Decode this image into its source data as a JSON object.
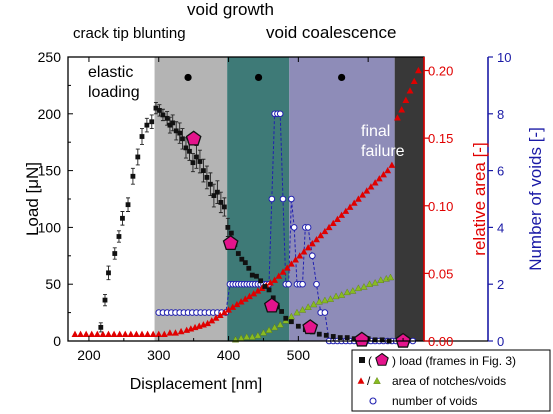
{
  "chart_data": {
    "type": "scatter",
    "xlabel": "Displacement [nm]",
    "ylabel_left": "Load [μN]",
    "ylabel_right1": "relative area [-]",
    "ylabel_right2": "Number of voids [-]",
    "xlim": [
      170,
      680
    ],
    "ylim_left": [
      0,
      250
    ],
    "ylim_right1": [
      0,
      0.21
    ],
    "ylim_right2": [
      0,
      10
    ],
    "xticks": [
      "200",
      "300",
      "400",
      "500",
      "600"
    ],
    "xtick_values": [
      200,
      300,
      400,
      500,
      600
    ],
    "yticks_left": [
      "0",
      "50",
      "100",
      "150",
      "200",
      "250"
    ],
    "ytick_values_left": [
      0,
      50,
      100,
      150,
      200,
      250
    ],
    "yticks_right1": [
      "0.00",
      "0.05",
      "0.10",
      "0.15",
      "0.20"
    ],
    "ytick_values_right1": [
      0,
      0.05,
      0.1,
      0.15,
      0.2
    ],
    "yticks_right2": [
      "0",
      "2",
      "4",
      "6",
      "8",
      "10"
    ],
    "ytick_values_right2": [
      0,
      2,
      4,
      6,
      8,
      10
    ],
    "colors": {
      "load": "#111111",
      "frame": "#e4148c",
      "area_notch": "#e00000",
      "area_void": "#88bb22",
      "voids": "#2020b0",
      "axis_red": "#e00000",
      "axis_blue": "#1a1aa6",
      "region_blunting": "#b4b4b4",
      "region_growth": "#3e7a77",
      "region_coalescence": "#8e8cb8",
      "region_failure": "#383838"
    },
    "regions": [
      {
        "name": "crack tip blunting",
        "x0": 294,
        "x1": 398,
        "color": "#b4b4b4",
        "dot_x": 342,
        "dot_y": 232
      },
      {
        "name": "void growth",
        "x0": 398,
        "x1": 487,
        "color": "#3e7a77",
        "dot_x": 443,
        "dot_y": 232
      },
      {
        "name": "void coalescence",
        "x0": 487,
        "x1": 638,
        "color": "#8e8cb8",
        "dot_x": 562,
        "dot_y": 232
      },
      {
        "name": "final failure",
        "x0": 638,
        "x1": 680,
        "color": "#383838"
      }
    ],
    "annotations": {
      "crack_tip_blunting": "crack tip blunting",
      "void_growth": "void growth",
      "void_coalescence": "void coalescence",
      "elastic": "elastic",
      "loading": "loading",
      "final": "final",
      "failure": "failure"
    },
    "series": [
      {
        "name": "load (frames in Fig. 3)",
        "kind": "load",
        "x": [
          217,
          223,
          228,
          237,
          243,
          248,
          256,
          263,
          270,
          276,
          283,
          290,
          296,
          301,
          306,
          312,
          316,
          320,
          325,
          330,
          334,
          339,
          344,
          349,
          354,
          359,
          364,
          369,
          374,
          379,
          384,
          389,
          394,
          399,
          404,
          409,
          414,
          419,
          424,
          429,
          434,
          440,
          446,
          452,
          458,
          464,
          470,
          476,
          482,
          490,
          500,
          510,
          520,
          530,
          540,
          550,
          560,
          570,
          580,
          590,
          600,
          610,
          620,
          630
        ],
        "y": [
          12,
          36,
          60,
          77,
          92,
          108,
          120,
          145,
          162,
          180,
          190,
          193,
          205,
          203,
          199,
          196,
          190,
          192,
          185,
          183,
          178,
          170,
          167,
          157,
          162,
          158,
          150,
          144,
          138,
          128,
          131,
          122,
          118,
          100,
          95,
          85,
          77,
          72,
          69,
          64,
          58,
          57,
          53,
          48,
          45,
          38,
          30,
          26,
          20,
          17,
          13,
          10,
          8,
          6,
          5,
          4,
          3,
          3,
          2,
          2,
          2,
          1,
          1,
          0
        ],
        "yerr": [
          4,
          5,
          6,
          5,
          5,
          6,
          6,
          7,
          7,
          7,
          6,
          6,
          5,
          5,
          5,
          6,
          7,
          7,
          8,
          9,
          9,
          9,
          8,
          8,
          10,
          10,
          10,
          10,
          10,
          10,
          10,
          9,
          8,
          8,
          0,
          0,
          0,
          0,
          0,
          0,
          0,
          0,
          0,
          0,
          0,
          0,
          0,
          0,
          0,
          0,
          0,
          0,
          0,
          0,
          0,
          0,
          0,
          0,
          0,
          0,
          0,
          0,
          0,
          0
        ]
      },
      {
        "name": "frames in Fig. 3",
        "kind": "frames",
        "x": [
          350,
          403,
          462,
          517,
          591,
          650
        ],
        "y": [
          178,
          86,
          31,
          12,
          1,
          0
        ]
      },
      {
        "name": "area of notches",
        "kind": "area_notch",
        "x": [
          180,
          188,
          196,
          204,
          212,
          220,
          228,
          236,
          244,
          252,
          260,
          268,
          276,
          284,
          292,
          300,
          308,
          316,
          324,
          332,
          340,
          346,
          352,
          358,
          364,
          370,
          376,
          382,
          388,
          394,
          400,
          406,
          412,
          418,
          424,
          430,
          436,
          442,
          448,
          454,
          460,
          466,
          472,
          478,
          484,
          490,
          496,
          502,
          508,
          514,
          520,
          526,
          532,
          538,
          544,
          550,
          556,
          562,
          568,
          574,
          580,
          586,
          592,
          598,
          604,
          610,
          616,
          622,
          628,
          634,
          642,
          648,
          654,
          660,
          666,
          672
        ],
        "y": [
          0.005,
          0.005,
          0.005,
          0.005,
          0.005,
          0.005,
          0.005,
          0.005,
          0.005,
          0.005,
          0.005,
          0.005,
          0.005,
          0.005,
          0.005,
          0.005,
          0.005,
          0.006,
          0.006,
          0.007,
          0.008,
          0.009,
          0.01,
          0.011,
          0.012,
          0.013,
          0.015,
          0.017,
          0.019,
          0.021,
          0.023,
          0.025,
          0.027,
          0.029,
          0.031,
          0.033,
          0.035,
          0.037,
          0.039,
          0.041,
          0.043,
          0.045,
          0.048,
          0.051,
          0.054,
          0.057,
          0.06,
          0.063,
          0.066,
          0.069,
          0.072,
          0.075,
          0.078,
          0.081,
          0.084,
          0.087,
          0.09,
          0.093,
          0.096,
          0.099,
          0.102,
          0.105,
          0.108,
          0.111,
          0.114,
          0.117,
          0.12,
          0.123,
          0.126,
          0.13,
          0.165,
          0.171,
          0.178,
          0.185,
          0.192,
          0.2
        ]
      },
      {
        "name": "area of voids",
        "kind": "area_void",
        "x": [
          410,
          418,
          426,
          434,
          442,
          450,
          458,
          466,
          474,
          482,
          490,
          498,
          506,
          514,
          522,
          530,
          538,
          546,
          554,
          562,
          570,
          578,
          586,
          594,
          602,
          610,
          618,
          626,
          632
        ],
        "y": [
          0.001,
          0.002,
          0.003,
          0.003,
          0.004,
          0.006,
          0.008,
          0.01,
          0.012,
          0.015,
          0.018,
          0.021,
          0.023,
          0.025,
          0.027,
          0.029,
          0.03,
          0.031,
          0.033,
          0.034,
          0.036,
          0.037,
          0.039,
          0.04,
          0.042,
          0.043,
          0.045,
          0.046,
          0.047
        ]
      },
      {
        "name": "number of voids",
        "kind": "voids",
        "x": [
          300,
          306,
          312,
          318,
          324,
          330,
          336,
          342,
          348,
          354,
          360,
          366,
          372,
          378,
          384,
          390,
          396,
          402,
          406,
          410,
          414,
          418,
          422,
          426,
          430,
          434,
          438,
          442,
          446,
          450,
          454,
          458,
          462,
          466,
          470,
          474,
          478,
          482,
          486,
          490,
          494,
          498,
          502,
          506,
          510,
          514,
          520,
          526,
          532,
          538,
          544,
          550,
          556,
          562,
          568,
          574,
          580,
          586,
          592,
          598,
          604,
          610,
          616,
          622,
          628,
          634,
          640,
          648,
          656,
          664
        ],
        "y": [
          1,
          1,
          1,
          1,
          1,
          1,
          1,
          1,
          1,
          1,
          1,
          1,
          1,
          1,
          1,
          1,
          1,
          2,
          2,
          2,
          2,
          2,
          2,
          2,
          2,
          2,
          2,
          2,
          2,
          2,
          2,
          2,
          5,
          8,
          8,
          8,
          5,
          2,
          2,
          5,
          4,
          2,
          2,
          2,
          4,
          4,
          3,
          2,
          1,
          1,
          0,
          0,
          0,
          0,
          0,
          0,
          0,
          0,
          0,
          0,
          0,
          0,
          0,
          0,
          0,
          0,
          0,
          0,
          0,
          0
        ]
      }
    ],
    "legend": {
      "placement": "bottom-right",
      "entries": [
        {
          "prefix": "■ / (",
          "suffix": ") load (frames in Fig. 3)"
        },
        {
          "prefix": "/",
          "suffix": "area of notches/voids"
        },
        {
          "prefix": "",
          "suffix": "number of voids"
        }
      ]
    }
  }
}
